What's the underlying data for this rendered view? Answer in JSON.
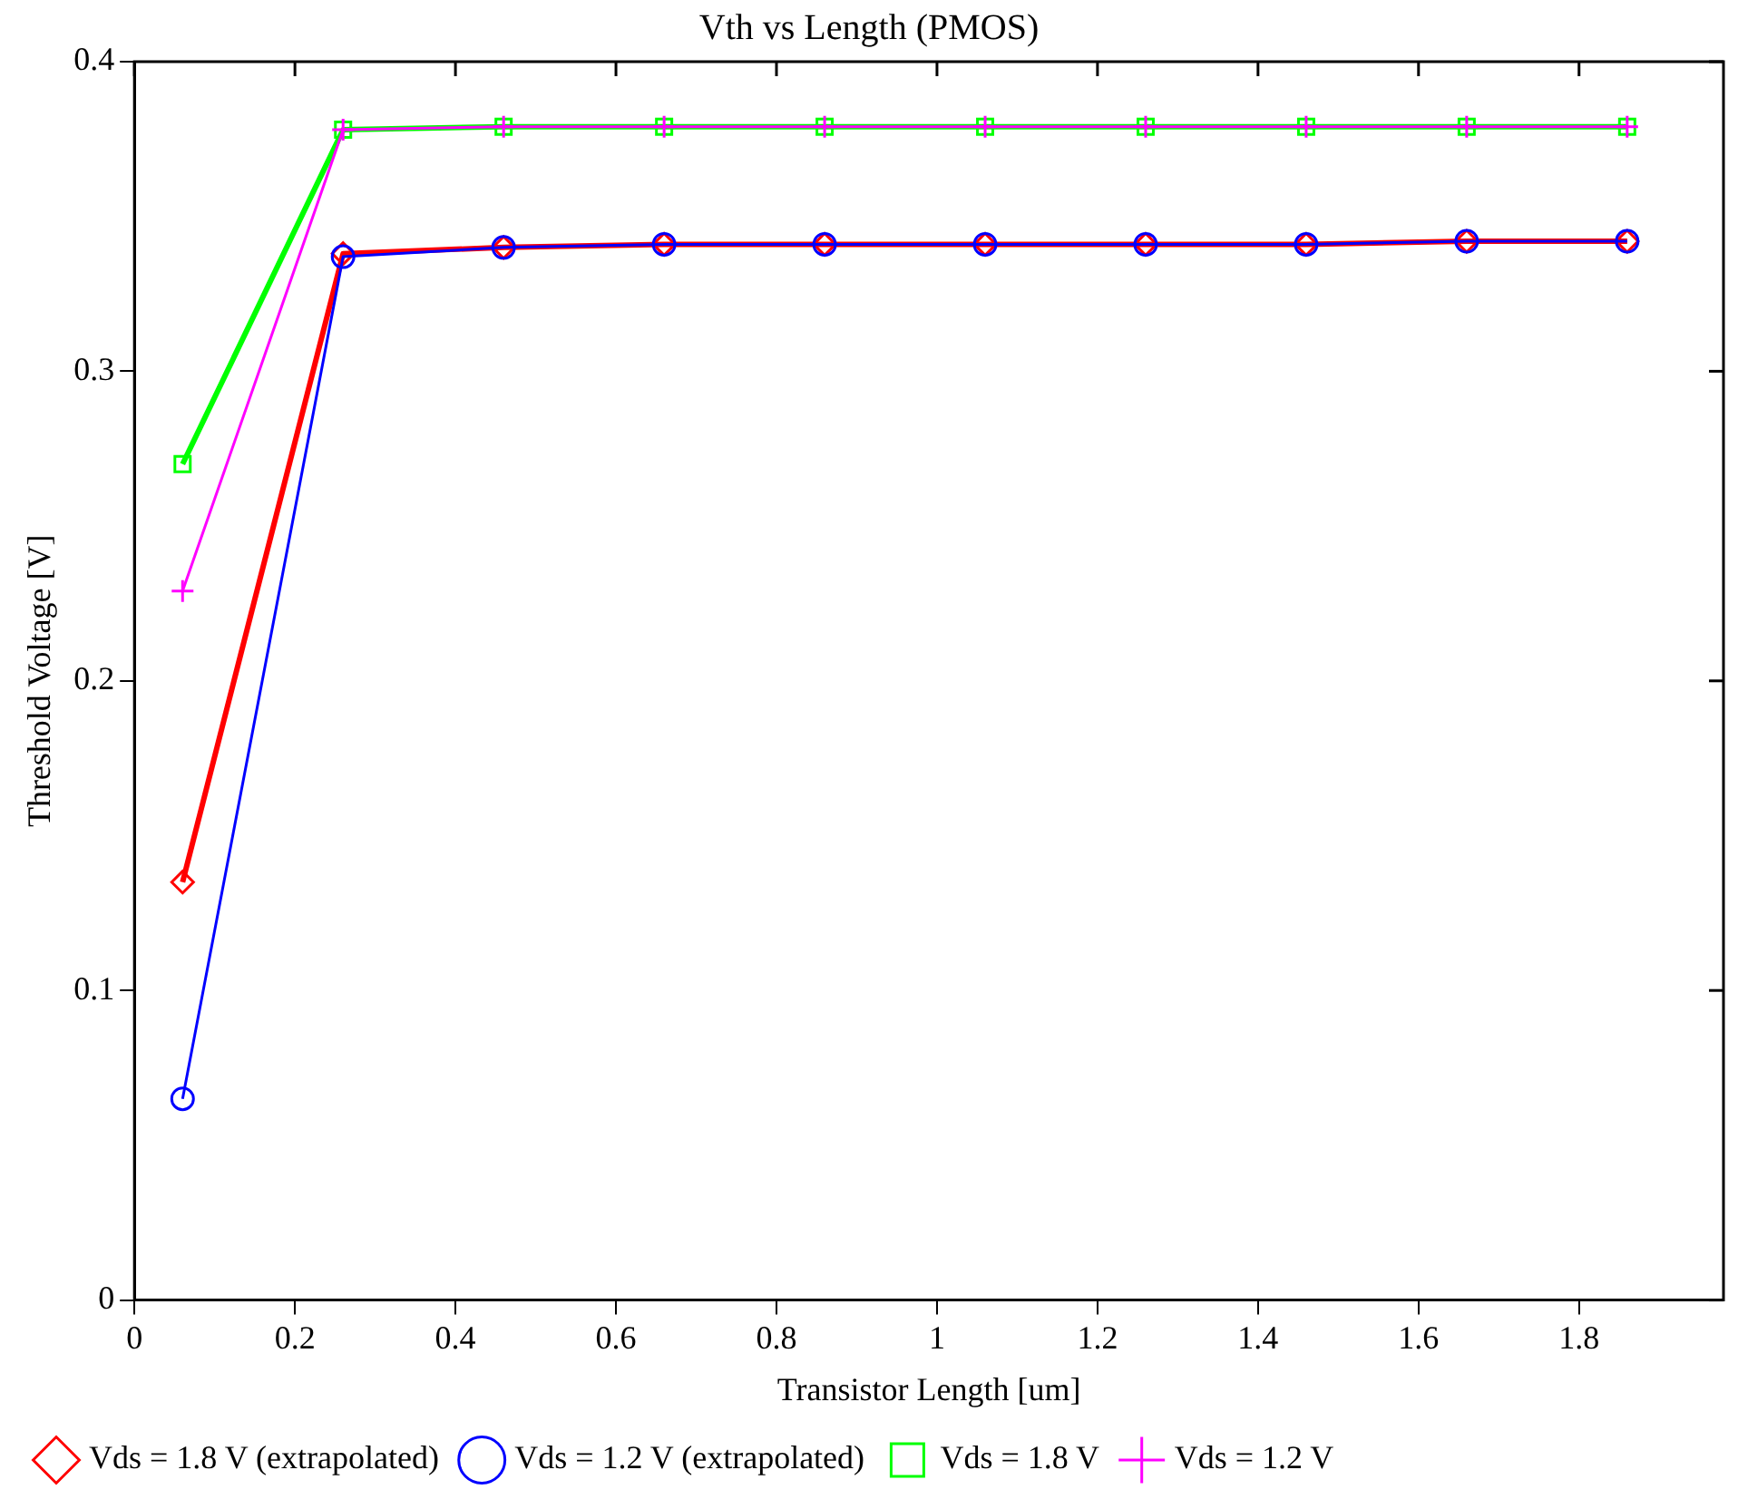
{
  "chart_data": {
    "type": "line",
    "title": "Vth vs Length (PMOS)",
    "xlabel": "Transistor Length [um]",
    "ylabel": "Threshold Voltage [V]",
    "x": [
      0.06,
      0.26,
      0.46,
      0.66,
      0.86,
      1.06,
      1.26,
      1.46,
      1.66,
      1.86
    ],
    "xlim": [
      0,
      1.98
    ],
    "xticks": [
      0,
      0.2,
      0.4,
      0.6,
      0.8,
      1,
      1.2,
      1.4,
      1.6,
      1.8
    ],
    "ylim": [
      0,
      0.4
    ],
    "yticks": [
      0,
      0.1,
      0.2,
      0.3,
      0.4
    ],
    "grid": false,
    "legend": "bottom",
    "line_style": "solid",
    "series": [
      {
        "name": "Vds = 1.8 V (extrapolated)",
        "color": "#ff0000",
        "marker": "diamond",
        "values": [
          0.135,
          0.338,
          0.34,
          0.341,
          0.341,
          0.341,
          0.341,
          0.341,
          0.342,
          0.342
        ]
      },
      {
        "name": "Vds = 1.2 V (extrapolated)",
        "color": "#0000ff",
        "marker": "circle",
        "values": [
          0.065,
          0.337,
          0.34,
          0.341,
          0.341,
          0.341,
          0.341,
          0.341,
          0.342,
          0.342
        ]
      },
      {
        "name": "Vds = 1.8 V",
        "color": "#00ff00",
        "marker": "square",
        "values": [
          0.27,
          0.378,
          0.379,
          0.379,
          0.379,
          0.379,
          0.379,
          0.379,
          0.379,
          0.379
        ]
      },
      {
        "name": "Vds = 1.2 V",
        "color": "#ff00ff",
        "marker": "cross",
        "values": [
          0.229,
          0.378,
          0.379,
          0.379,
          0.379,
          0.379,
          0.379,
          0.379,
          0.379,
          0.379
        ]
      }
    ]
  }
}
